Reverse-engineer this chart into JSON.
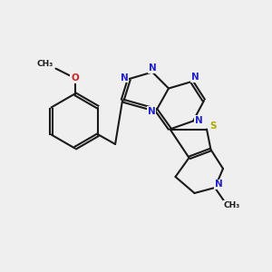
{
  "bg_color": "#efefef",
  "bond_color": "#1a1a1a",
  "N_color": "#2222cc",
  "O_color": "#cc2222",
  "S_color": "#aaaa00",
  "lw": 1.5,
  "fs": 7.5,
  "dpi": 100,
  "figsize": [
    3.0,
    3.0
  ],
  "xlim": [
    0,
    10
  ],
  "ylim": [
    0,
    10
  ]
}
